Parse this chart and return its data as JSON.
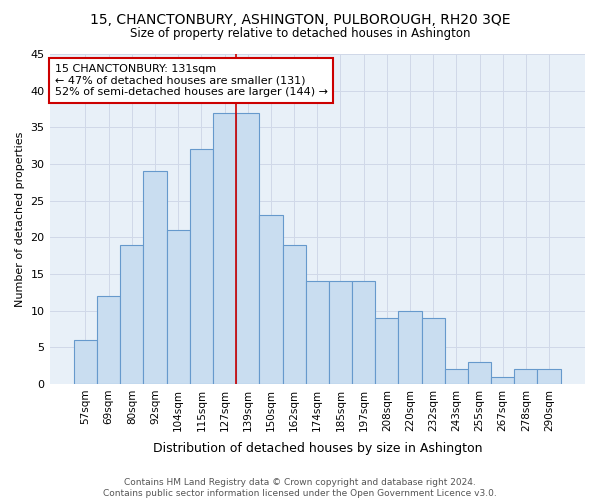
{
  "title": "15, CHANCTONBURY, ASHINGTON, PULBOROUGH, RH20 3QE",
  "subtitle": "Size of property relative to detached houses in Ashington",
  "xlabel": "Distribution of detached houses by size in Ashington",
  "ylabel": "Number of detached properties",
  "categories": [
    "57sqm",
    "69sqm",
    "80sqm",
    "92sqm",
    "104sqm",
    "115sqm",
    "127sqm",
    "139sqm",
    "150sqm",
    "162sqm",
    "174sqm",
    "185sqm",
    "197sqm",
    "208sqm",
    "220sqm",
    "232sqm",
    "243sqm",
    "255sqm",
    "267sqm",
    "278sqm",
    "290sqm"
  ],
  "values": [
    6,
    12,
    19,
    29,
    21,
    32,
    37,
    37,
    23,
    19,
    14,
    14,
    14,
    9,
    10,
    9,
    2,
    3,
    1,
    2,
    2
  ],
  "bar_color": "#c9ddf0",
  "bar_edge_color": "#6699cc",
  "grid_color": "#d0d8e8",
  "annotation_text": "15 CHANCTONBURY: 131sqm\n← 47% of detached houses are smaller (131)\n52% of semi-detached houses are larger (144) →",
  "annotation_box_edge": "#cc0000",
  "vline_x": 6.5,
  "vline_color": "#cc0000",
  "ylim": [
    0,
    45
  ],
  "yticks": [
    0,
    5,
    10,
    15,
    20,
    25,
    30,
    35,
    40,
    45
  ],
  "footer": "Contains HM Land Registry data © Crown copyright and database right 2024.\nContains public sector information licensed under the Open Government Licence v3.0.",
  "bg_color": "#ffffff",
  "plot_bg_color": "#e8f0f8"
}
